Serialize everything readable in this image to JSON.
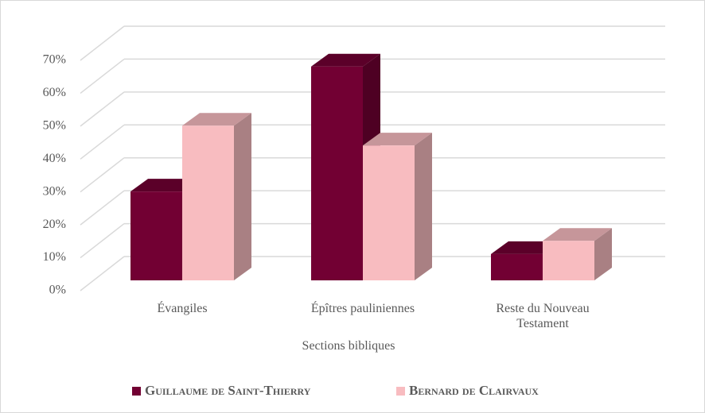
{
  "chart_data": {
    "type": "bar3d",
    "x_label": "Sections bibliques",
    "categories": [
      "Évangiles",
      "Épîtres pauliniennes",
      "Reste du Nouveau Testament"
    ],
    "series": [
      {
        "name": "Guillaume de Saint-Thierry",
        "color": "#720033",
        "values": [
          27,
          65,
          8
        ]
      },
      {
        "name": "Bernard de Clairvaux",
        "color": "#f8bcc0",
        "values": [
          47,
          41,
          12
        ]
      }
    ],
    "ylim": [
      0,
      70
    ],
    "yticks": [
      {
        "value": 0,
        "label": "0%"
      },
      {
        "value": 10,
        "label": "10%"
      },
      {
        "value": 20,
        "label": "20%"
      },
      {
        "value": 30,
        "label": "30%"
      },
      {
        "value": 40,
        "label": "40%"
      },
      {
        "value": 50,
        "label": "50%"
      },
      {
        "value": 60,
        "label": "60%"
      },
      {
        "value": 70,
        "label": "70%"
      }
    ],
    "grid": true,
    "legend": "bottom"
  }
}
